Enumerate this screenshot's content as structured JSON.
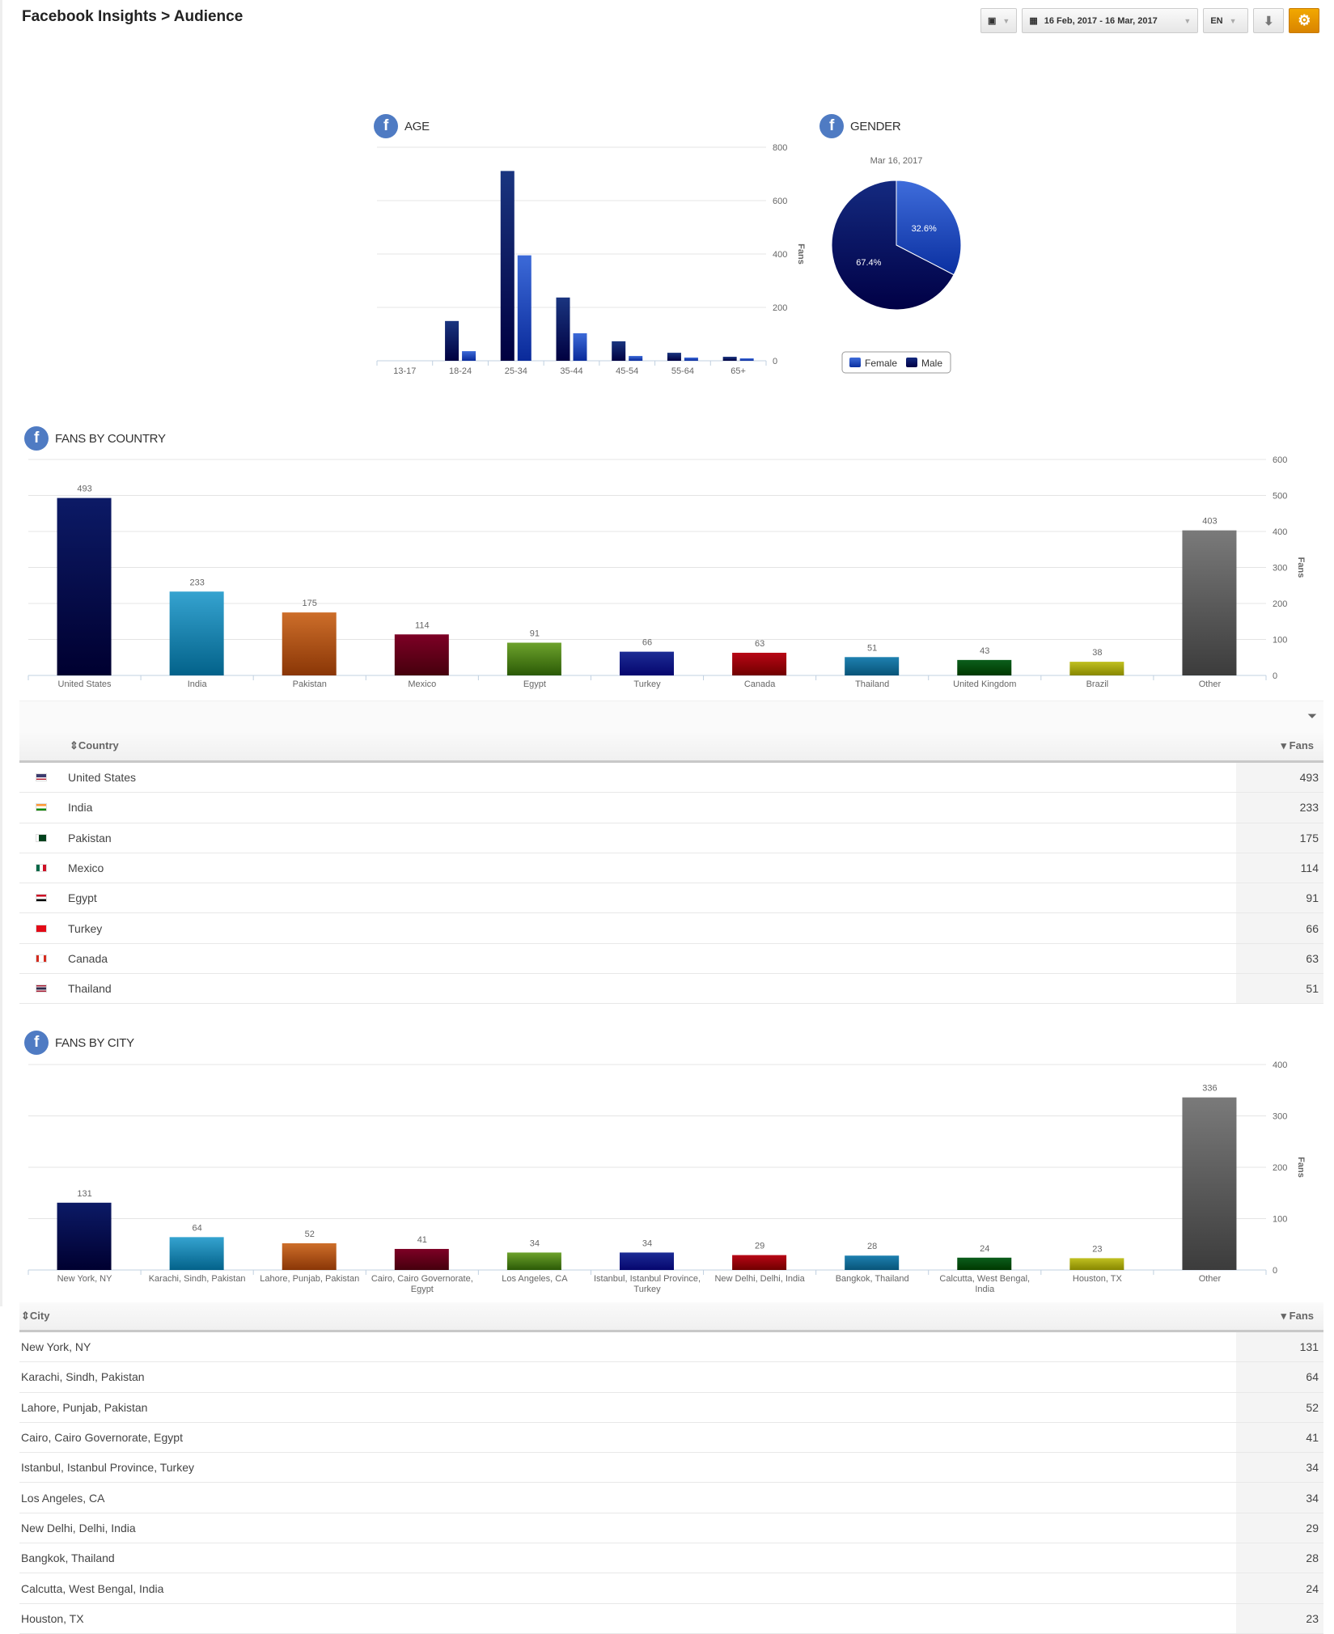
{
  "header": {
    "title": "Facebook Insights > Audience",
    "date_range": "16 Feb, 2017 - 16 Mar, 2017",
    "language": "EN",
    "icons": [
      "cube-icon",
      "calendar-icon",
      "download-icon",
      "gear-icon"
    ]
  },
  "sections": {
    "age": "AGE",
    "gender": "GENDER",
    "country": "FANS BY COUNTRY",
    "city": "FANS BY CITY"
  },
  "chart_data": [
    {
      "type": "bar",
      "title": "AGE",
      "ylabel": "Fans",
      "ylim": [
        0,
        800
      ],
      "yticks": [
        0,
        200,
        400,
        600,
        800
      ],
      "categories": [
        "13-17",
        "18-24",
        "25-34",
        "35-44",
        "45-54",
        "55-64",
        "65+"
      ],
      "series": [
        {
          "name": "Male",
          "color": "#0d1f66",
          "values": [
            0,
            149,
            711,
            237,
            73,
            30,
            15
          ]
        },
        {
          "name": "Female",
          "color": "#2f5fd0",
          "values": [
            0,
            36,
            395,
            103,
            18,
            12,
            9
          ]
        }
      ]
    },
    {
      "type": "pie",
      "title": "GENDER",
      "subtitle": "Mar 16, 2017",
      "slices": [
        {
          "name": "Female",
          "value": 32.6,
          "label": "32.6%",
          "color": "#2f5fd0"
        },
        {
          "name": "Male",
          "value": 67.4,
          "label": "67.4%",
          "color": "#0d1a66"
        }
      ],
      "legend": [
        "Female",
        "Male"
      ]
    },
    {
      "type": "bar",
      "title": "FANS BY COUNTRY",
      "ylabel": "Fans",
      "ylim": [
        0,
        600
      ],
      "yticks": [
        0,
        100,
        200,
        300,
        400,
        500,
        600
      ],
      "categories": [
        "United States",
        "India",
        "Pakistan",
        "Mexico",
        "Egypt",
        "Turkey",
        "Canada",
        "Thailand",
        "United Kingdom",
        "Brazil",
        "Other"
      ],
      "values": [
        493,
        233,
        175,
        114,
        91,
        66,
        63,
        51,
        43,
        38,
        403
      ]
    },
    {
      "type": "bar",
      "title": "FANS BY CITY",
      "ylabel": "Fans",
      "ylim": [
        0,
        400
      ],
      "yticks": [
        0,
        100,
        200,
        300,
        400
      ],
      "categories": [
        "New York, NY",
        "Karachi, Sindh, Pakistan",
        "Lahore, Punjab, Pakistan",
        "Cairo, Cairo Governorate, Egypt",
        "Los Angeles, CA",
        "Istanbul, Istanbul Province, Turkey",
        "New Delhi, Delhi, India",
        "Bangkok, Thailand",
        "Calcutta, West Bengal, India",
        "Houston, TX",
        "Other"
      ],
      "values": [
        131,
        64,
        52,
        41,
        34,
        34,
        29,
        28,
        24,
        23,
        336
      ]
    }
  ],
  "country_table": {
    "col_country": "Country",
    "col_fans": "Fans",
    "rows": [
      {
        "name": "United States",
        "fans": "493"
      },
      {
        "name": "India",
        "fans": "233"
      },
      {
        "name": "Pakistan",
        "fans": "175"
      },
      {
        "name": "Mexico",
        "fans": "114"
      },
      {
        "name": "Egypt",
        "fans": "91"
      },
      {
        "name": "Turkey",
        "fans": "66"
      },
      {
        "name": "Canada",
        "fans": "63"
      },
      {
        "name": "Thailand",
        "fans": "51"
      }
    ]
  },
  "city_table": {
    "col_city": "City",
    "col_fans": "Fans",
    "rows": [
      {
        "name": "New York, NY",
        "fans": "131"
      },
      {
        "name": "Karachi, Sindh, Pakistan",
        "fans": "64"
      },
      {
        "name": "Lahore, Punjab, Pakistan",
        "fans": "52"
      },
      {
        "name": "Cairo, Cairo Governorate, Egypt",
        "fans": "41"
      },
      {
        "name": "Istanbul, Istanbul Province, Turkey",
        "fans": "34"
      },
      {
        "name": "Los Angeles, CA",
        "fans": "34"
      },
      {
        "name": "New Delhi, Delhi, India",
        "fans": "29"
      },
      {
        "name": "Bangkok, Thailand",
        "fans": "28"
      },
      {
        "name": "Calcutta, West Bengal, India",
        "fans": "24"
      },
      {
        "name": "Houston, TX",
        "fans": "23"
      }
    ]
  }
}
